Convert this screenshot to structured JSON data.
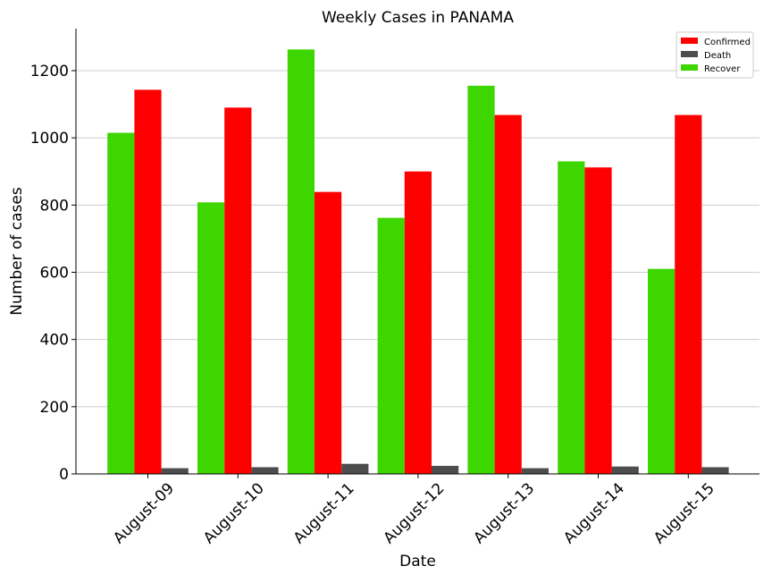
{
  "chart_data": {
    "type": "bar",
    "title": "Weekly Cases in PANAMA",
    "xlabel": "Date",
    "ylabel": "Number of cases",
    "categories": [
      "August-09",
      "August-10",
      "August-11",
      "August-12",
      "August-13",
      "August-14",
      "August-15"
    ],
    "series": [
      {
        "name": "Recover",
        "color": "#3dd600",
        "values": [
          1015,
          808,
          1263,
          762,
          1155,
          930,
          610
        ]
      },
      {
        "name": "Confirmed",
        "color": "#ff0000",
        "values": [
          1143,
          1090,
          839,
          900,
          1068,
          912,
          1068
        ]
      },
      {
        "name": "Death",
        "color": "#4d4d4d",
        "values": [
          17,
          20,
          30,
          24,
          17,
          22,
          20
        ]
      }
    ],
    "legend_order": [
      "Confirmed",
      "Death",
      "Recover"
    ],
    "legend_position": "top-right",
    "ylim": [
      0,
      1325
    ],
    "yticks": [
      0,
      200,
      400,
      600,
      800,
      1000,
      1200
    ],
    "grid": "horizontal",
    "xtick_rotation": 45
  }
}
